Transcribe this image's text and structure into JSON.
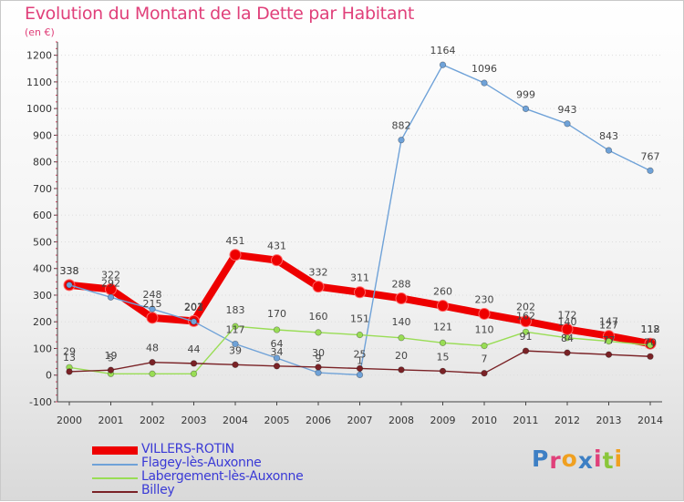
{
  "title": "Evolution du Montant de la Dette par Habitant",
  "subtitle": "(en €)",
  "brand": "Proxiti",
  "colors": {
    "title": "#e0407a",
    "legend_text": "#3a3ad6",
    "axis": "#444444",
    "grid": "#dddddd"
  },
  "chart_data": {
    "type": "line",
    "title": "Evolution du Montant de la Dette par Habitant",
    "subtitle": "(en €)",
    "x": [
      2000,
      2001,
      2002,
      2003,
      2004,
      2005,
      2006,
      2007,
      2008,
      2009,
      2010,
      2011,
      2012,
      2013,
      2014
    ],
    "y_ticks": [
      -100,
      0,
      100,
      200,
      300,
      400,
      500,
      600,
      700,
      800,
      900,
      1000,
      1100,
      1200
    ],
    "ylim": [
      -100,
      1250
    ],
    "grid": "horizontal dotted",
    "legend_position": "bottom-left",
    "series": [
      {
        "name": "VILLERS-ROTIN",
        "color": "#ee0000",
        "values": [
          338,
          322,
          215,
          203,
          451,
          431,
          332,
          311,
          288,
          260,
          230,
          202,
          172,
          147,
          118
        ],
        "labels": [
          "338",
          "322",
          "215",
          "203",
          "451",
          "431",
          "332",
          "311",
          "288",
          "260",
          "230",
          "202",
          "172",
          "147",
          "118"
        ]
      },
      {
        "name": "Flagey-lès-Auxonne",
        "color": "#6fa2d8",
        "values": [
          338,
          292,
          248,
          201,
          117,
          64,
          9,
          1,
          882,
          1164,
          1096,
          999,
          943,
          843,
          767
        ],
        "labels": [
          "338",
          "292",
          "248",
          "201",
          "117",
          "64",
          "9",
          "1",
          "882",
          "1164",
          "1096",
          "999",
          "943",
          "843",
          "767"
        ]
      },
      {
        "name": "Labergement-lès-Auxonne",
        "color": "#99dd55",
        "values": [
          29,
          5,
          5,
          5,
          183,
          170,
          160,
          151,
          140,
          121,
          110,
          162,
          140,
          127,
          112
        ],
        "labels": [
          "29",
          "5",
          "",
          "",
          "183",
          "170",
          "160",
          "151",
          "140",
          "121",
          "110",
          "162",
          "140",
          "127",
          "112"
        ]
      },
      {
        "name": "Billey",
        "color": "#7a2226",
        "values": [
          13,
          19,
          48,
          44,
          39,
          34,
          30,
          25,
          20,
          15,
          7,
          91,
          84,
          77,
          70
        ],
        "labels": [
          "13",
          "19",
          "48",
          "44",
          "39",
          "34",
          "30",
          "25",
          "20",
          "15",
          "7",
          "91",
          "84",
          "77",
          "70"
        ]
      }
    ]
  }
}
